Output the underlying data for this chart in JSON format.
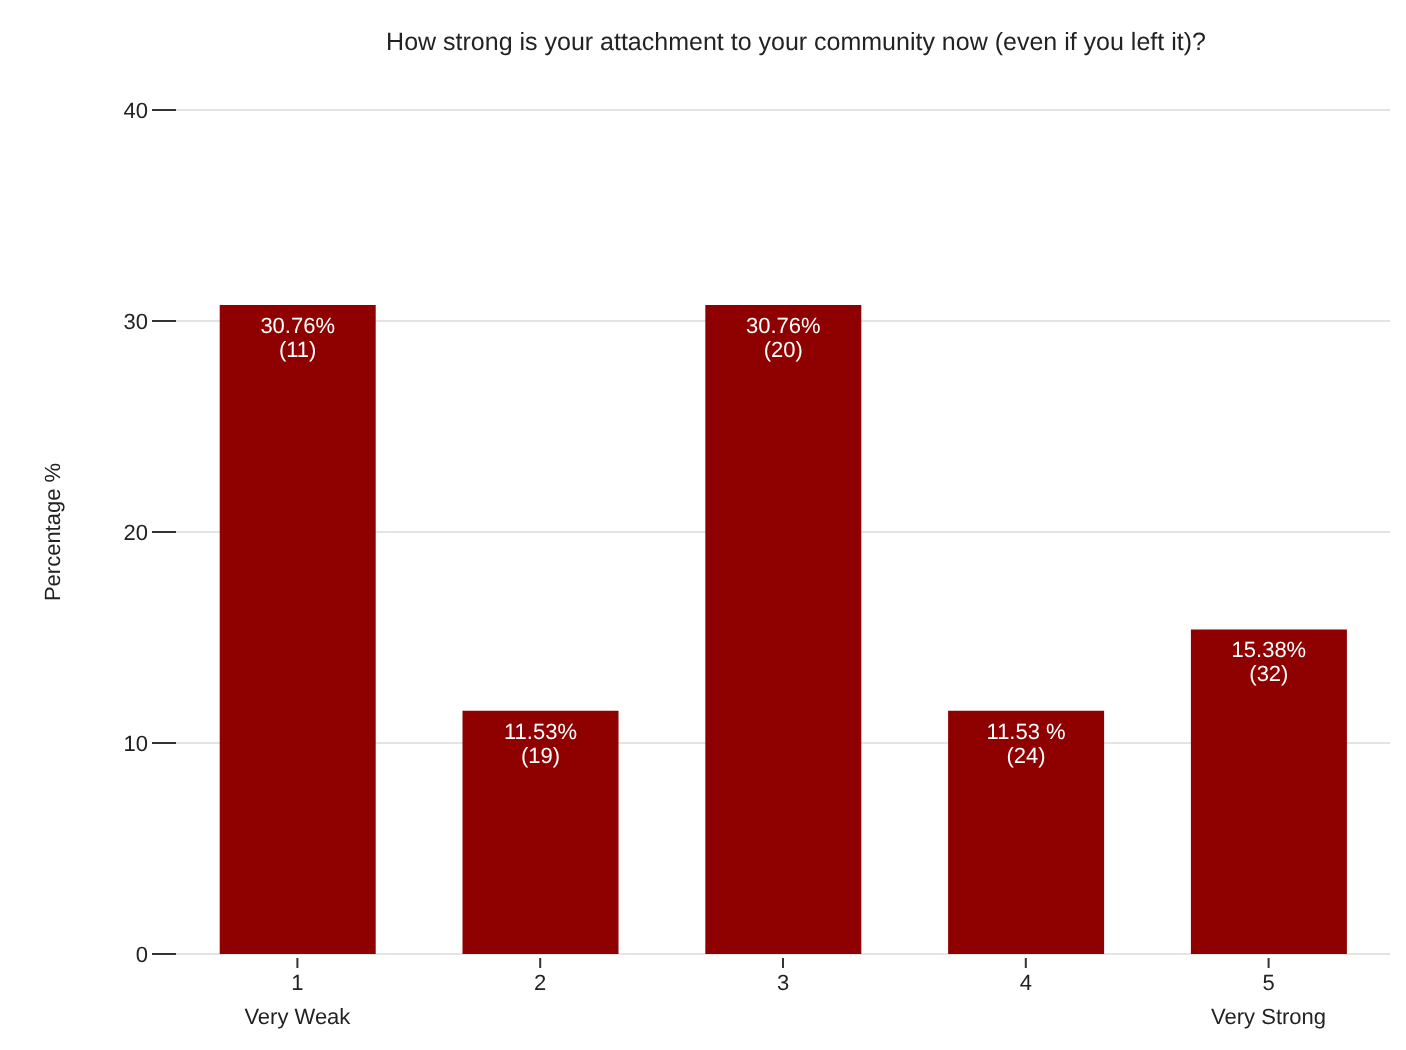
{
  "chart_data": {
    "type": "bar",
    "title": "How strong is your attachment to your community now (even if you left it)?",
    "ylabel": "Percentage %",
    "categories": [
      "1\nVery Weak",
      "2",
      "3",
      "4",
      "5\nVery Strong"
    ],
    "values": [
      30.76,
      11.53,
      30.76,
      11.53,
      15.38
    ],
    "value_labels": [
      "30.76%\n(11)",
      "11.53%\n(19)",
      "30.76%\n(20)",
      "11.53 %\n(24)",
      "15.38%\n(32)"
    ],
    "color": "#8f0000",
    "ylim": [
      0,
      40
    ],
    "yticks": [
      0,
      10,
      20,
      30,
      40
    ],
    "grid": "y"
  }
}
